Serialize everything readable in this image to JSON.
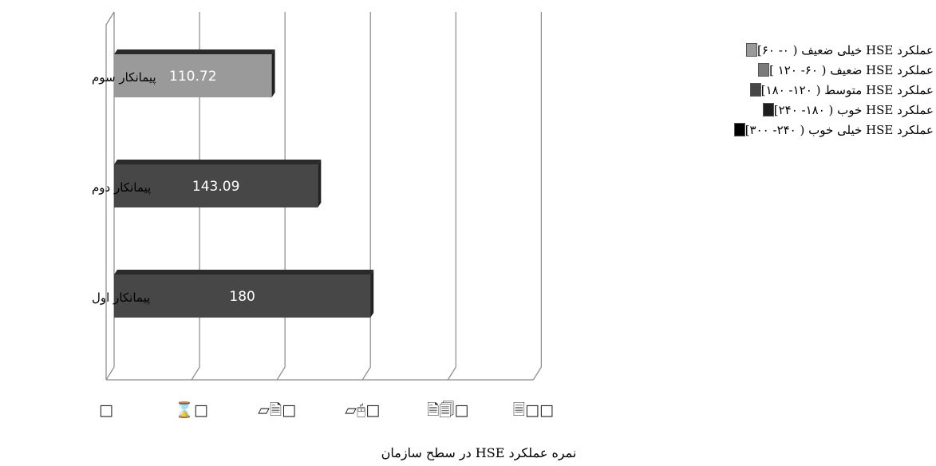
{
  "chart_data": {
    "type": "bar",
    "orientation": "horizontal",
    "categories": [
      "پیمانکار سوم",
      "پیمانکار دوم",
      "پیمانکار اول"
    ],
    "values": [
      110.72,
      143.09,
      180
    ],
    "bar_colors": [
      "#9a9a9a",
      "#474747",
      "#474747"
    ],
    "xlabel": "نمره عملکرد HSE در سطح سازمان",
    "xlim": [
      0,
      300
    ],
    "x_ticks": [
      0,
      60,
      120,
      180,
      240,
      300
    ],
    "x_tick_labels": [
      "□",
      "⌛□",
      "▱🗎□",
      "▱🖰□",
      "🗎🗐□",
      "🗏□□"
    ],
    "grid": true,
    "legend_position": "top-right",
    "legend": [
      {
        "label": "عملکرد HSE خیلی ضعیف ( ۰- ۶۰]",
        "color": "#9a9a9a"
      },
      {
        "label": "عملکرد HSE ضعیف ( ۶۰- ۱۲۰ ]",
        "color": "#7a7a7a"
      },
      {
        "label": "عملکرد HSE متوسط ( ۱۲۰- ۱۸۰]",
        "color": "#474747"
      },
      {
        "label": "عملکرد HSE خوب ( ۱۸۰- ۲۴۰]",
        "color": "#1e1e1e"
      },
      {
        "label": "عملکرد HSE خیلی خوب ( ۲۴۰- ۳۰۰]",
        "color": "#000000"
      }
    ]
  }
}
